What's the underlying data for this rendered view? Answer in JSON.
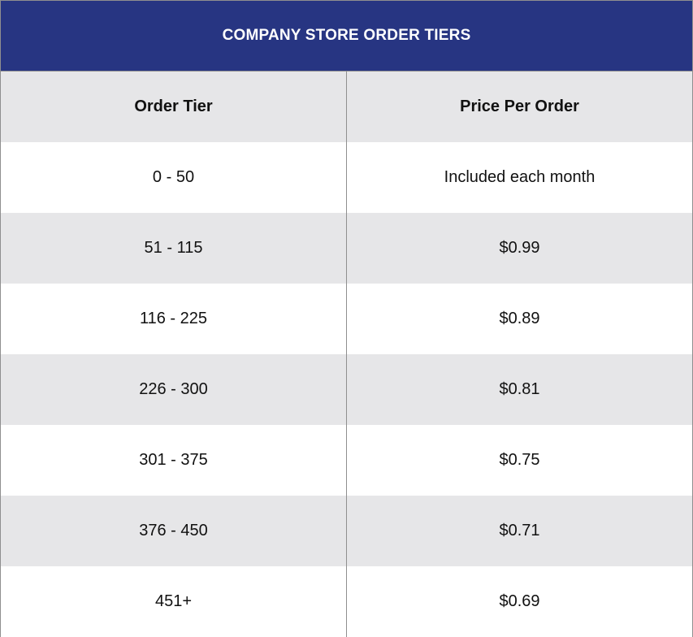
{
  "title": "COMPANY STORE ORDER TIERS",
  "colors": {
    "title_bg": "#273582",
    "shaded_row": "#e6e6e8",
    "border": "#8f8f8f"
  },
  "columns": [
    "Order Tier",
    "Price Per Order"
  ],
  "rows": [
    {
      "tier": "0 - 50",
      "price": "Included each month"
    },
    {
      "tier": "51 - 115",
      "price": "$0.99"
    },
    {
      "tier": "116 - 225",
      "price": "$0.89"
    },
    {
      "tier": "226 - 300",
      "price": "$0.81"
    },
    {
      "tier": "301 - 375",
      "price": "$0.75"
    },
    {
      "tier": "376 - 450",
      "price": "$0.71"
    },
    {
      "tier": "451+",
      "price": "$0.69"
    }
  ]
}
